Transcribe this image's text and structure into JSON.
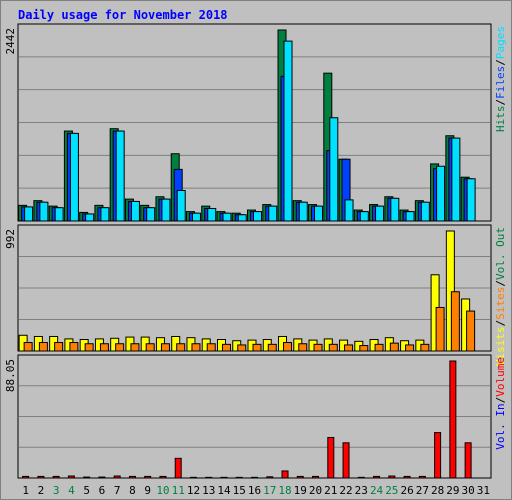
{
  "chart_data": {
    "type": "bar",
    "title": "Daily usage for November 2018",
    "days": [
      "1",
      "2",
      "3",
      "4",
      "5",
      "6",
      "7",
      "8",
      "9",
      "10",
      "11",
      "12",
      "13",
      "14",
      "15",
      "16",
      "17",
      "18",
      "19",
      "20",
      "21",
      "22",
      "23",
      "24",
      "25",
      "26",
      "27",
      "28",
      "29",
      "30",
      "31"
    ],
    "weekend_days": [
      "3",
      "4",
      "10",
      "11",
      "17",
      "18",
      "24",
      "25"
    ],
    "colors": {
      "hits": "#008040",
      "files": "#0040ff",
      "pages": "#00e0ff",
      "visits": "#ffff00",
      "sites": "#ff8000",
      "volume": "#ff0000",
      "vol_in": "#0000ff",
      "vol_out": "#008040",
      "weekday_label": "#000000",
      "weekend_label": "#008040"
    },
    "panels": [
      {
        "name": "hits-files-pages",
        "max_label": "2442",
        "ymax": 2442,
        "legend": [
          {
            "text": "Hits",
            "color": "#008040"
          },
          {
            "text": "/",
            "color": "#000000"
          },
          {
            "text": "Files",
            "color": "#0040ff"
          },
          {
            "text": "/",
            "color": "#000000"
          },
          {
            "text": "Pages",
            "color": "#00e0ff"
          }
        ],
        "series": [
          {
            "name": "Hits",
            "color": "#008040",
            "values": [
              200,
              260,
              190,
              1150,
              110,
              200,
              1180,
              280,
              200,
              310,
              860,
              120,
              190,
              120,
              100,
              140,
              210,
              2442,
              260,
              210,
              1890,
              790,
              140,
              210,
              310,
              140,
              260,
              730,
              1090,
              560
            ]
          },
          {
            "name": "Files",
            "color": "#0040ff",
            "values": [
              180,
              240,
              170,
              1120,
              90,
              170,
              1150,
              250,
              170,
              280,
              660,
              100,
              160,
              100,
              80,
              120,
              190,
              1850,
              240,
              190,
              900,
              790,
              120,
              190,
              290,
              120,
              240,
              670,
              1060,
              540
            ]
          },
          {
            "name": "Pages",
            "color": "#00e0ff",
            "values": [
              180,
              240,
              170,
              1120,
              90,
              170,
              1150,
              250,
              170,
              280,
              390,
              100,
              160,
              100,
              80,
              120,
              190,
              2300,
              240,
              190,
              1320,
              270,
              120,
              190,
              290,
              120,
              240,
              700,
              1060,
              540
            ]
          }
        ]
      },
      {
        "name": "visits-sites",
        "max_label": "992",
        "ymax": 992,
        "legend": [
          {
            "text": "Visits",
            "color": "#ffff00"
          },
          {
            "text": "/",
            "color": "#000000"
          },
          {
            "text": "Sites",
            "color": "#ff8000"
          },
          {
            "text": "/",
            "color": "#000000"
          },
          {
            "text": "Vol. Out",
            "color": "#008040"
          }
        ],
        "series": [
          {
            "name": "Visits",
            "color": "#ffff00",
            "values": [
              130,
              120,
              120,
              100,
              95,
              100,
              105,
              115,
              115,
              110,
              120,
              110,
              100,
              95,
              85,
              90,
              95,
              120,
              100,
              90,
              100,
              90,
              80,
              95,
              110,
              85,
              90,
              630,
              992,
              430
            ]
          },
          {
            "name": "Sites",
            "color": "#ff8000",
            "values": [
              70,
              70,
              70,
              70,
              60,
              60,
              60,
              60,
              60,
              60,
              60,
              60,
              60,
              55,
              50,
              55,
              55,
              70,
              60,
              55,
              55,
              50,
              45,
              55,
              65,
              50,
              55,
              360,
              490,
              330
            ]
          }
        ]
      },
      {
        "name": "volume",
        "max_label": "88.05",
        "ymax": 88.05,
        "legend": [
          {
            "text": "Vol. In",
            "color": "#0000ff"
          },
          {
            "text": "/",
            "color": "#000000"
          },
          {
            "text": "Volume",
            "color": "#ff0000"
          }
        ],
        "series": [
          {
            "name": "Volume",
            "color": "#ff0000",
            "values": [
              1.2,
              1.2,
              1.2,
              1.5,
              0.7,
              0.7,
              1.5,
              1.2,
              1.2,
              1.2,
              14.8,
              0.5,
              0.5,
              0.5,
              0.5,
              0.5,
              0.9,
              5.3,
              1.2,
              1.2,
              30.5,
              26.5,
              0.5,
              1.2,
              1.5,
              1.2,
              1.2,
              34.2,
              88.05,
              26.5
            ]
          }
        ]
      }
    ]
  }
}
